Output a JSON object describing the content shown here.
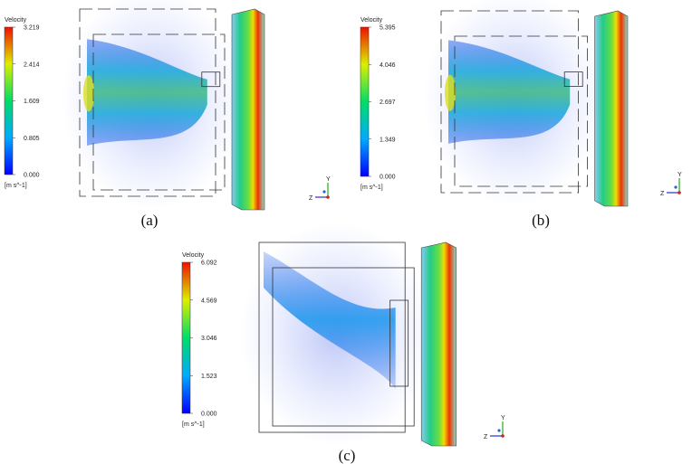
{
  "panels": [
    {
      "caption": "(a)",
      "legend": {
        "title": "Velocity",
        "ticks": [
          "3.219",
          "2.414",
          "1.609",
          "0.805",
          "0.000"
        ],
        "unit": "[m s^-1]"
      },
      "axes": {
        "y": "Y",
        "z": "Z"
      }
    },
    {
      "caption": "(b)",
      "legend": {
        "title": "Velocity",
        "ticks": [
          "5.395",
          "4.046",
          "2.697",
          "1.349",
          "0.000"
        ],
        "unit": "[m s^-1]"
      },
      "axes": {
        "y": "Y",
        "z": "Z"
      }
    },
    {
      "caption": "(c)",
      "legend": {
        "title": "Velocity",
        "ticks": [
          "6.092",
          "4.569",
          "3.046",
          "1.523",
          "0.000"
        ],
        "unit": "[m s^-1]"
      },
      "axes": {
        "y": "Y",
        "z": "Z"
      }
    }
  ]
}
